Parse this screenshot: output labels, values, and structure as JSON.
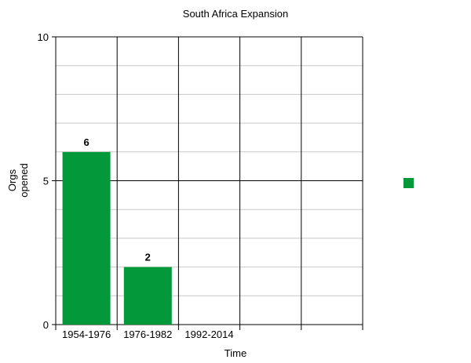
{
  "chart_data": {
    "type": "bar",
    "title": "South Africa Expansion",
    "xlabel": "Time",
    "ylabel": [
      "Orgs",
      "opened"
    ],
    "categories": [
      "1954-1976",
      "1976-1982",
      "1992-2014",
      "",
      ""
    ],
    "values": [
      6,
      2,
      null,
      null,
      null
    ],
    "data_labels": [
      "6",
      "2",
      "",
      "",
      ""
    ],
    "ylim": [
      0,
      10
    ],
    "yticks": [
      0,
      5,
      10
    ],
    "grid": true,
    "legend": {
      "placement": "right",
      "entries": [
        ""
      ]
    },
    "bar_color": "#03983a"
  }
}
